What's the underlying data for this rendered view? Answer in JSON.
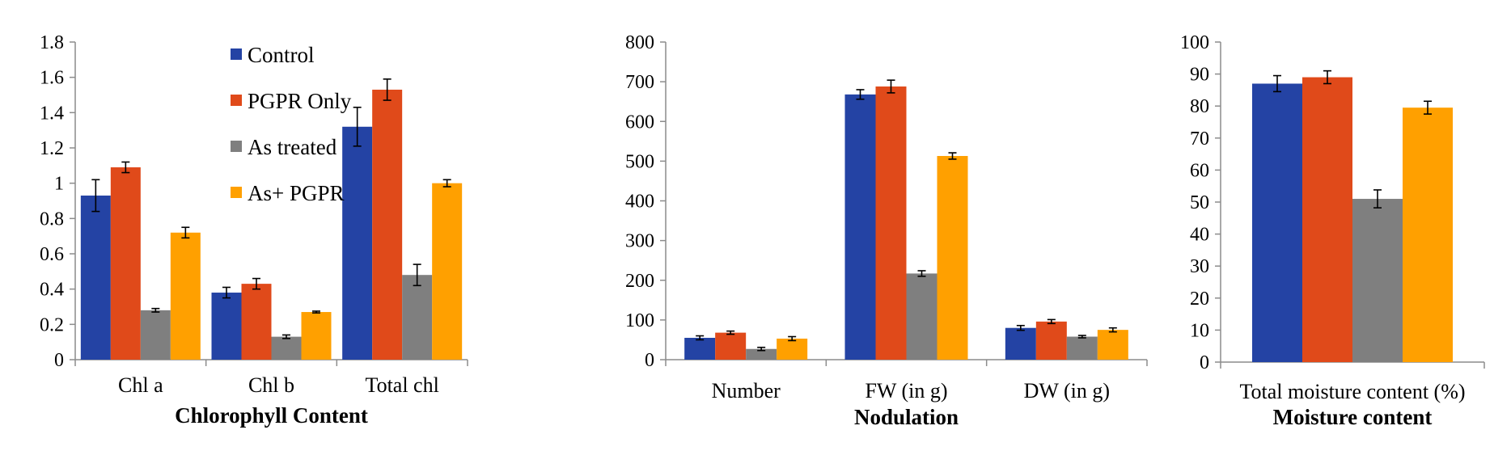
{
  "legend": {
    "entries": [
      {
        "name": "Control",
        "color": "#2443a4"
      },
      {
        "name": "PGPR Only",
        "color": "#e04a1a"
      },
      {
        "name": "As treated",
        "color": "#7f7f7f"
      },
      {
        "name": "As+ PGPR",
        "color": "#ffa000"
      }
    ]
  },
  "chart_data": [
    {
      "type": "bar",
      "title": "Chlorophyll Content",
      "categories": [
        "Chl a",
        "Chl b",
        "Total chl"
      ],
      "ylim": [
        0,
        1.8
      ],
      "yticks": [
        "0",
        "0.2",
        "0.4",
        "0.6",
        "0.8",
        "1",
        "1.2",
        "1.4",
        "1.6",
        "1.8"
      ],
      "tick_step": 0.2,
      "series": [
        {
          "name": "Control",
          "color": "#2443a4",
          "values": [
            0.93,
            0.38,
            1.32
          ],
          "errors": [
            0.09,
            0.03,
            0.11
          ]
        },
        {
          "name": "PGPR Only",
          "color": "#e04a1a",
          "values": [
            1.09,
            0.43,
            1.53
          ],
          "errors": [
            0.03,
            0.03,
            0.06
          ]
        },
        {
          "name": "As treated",
          "color": "#7f7f7f",
          "values": [
            0.28,
            0.13,
            0.48
          ],
          "errors": [
            0.01,
            0.01,
            0.06
          ]
        },
        {
          "name": "As+ PGPR",
          "color": "#ffa000",
          "values": [
            0.72,
            0.27,
            1.0
          ],
          "errors": [
            0.03,
            0.005,
            0.02
          ]
        }
      ]
    },
    {
      "type": "bar",
      "title": "Nodulation",
      "categories": [
        "Number",
        "FW (in g)",
        "DW (in g)"
      ],
      "ylim": [
        0,
        800
      ],
      "yticks": [
        "0",
        "100",
        "200",
        "300",
        "400",
        "500",
        "600",
        "700",
        "800"
      ],
      "tick_step": 100,
      "series": [
        {
          "name": "Control",
          "color": "#2443a4",
          "values": [
            55,
            668,
            80
          ],
          "errors": [
            5,
            12,
            6
          ]
        },
        {
          "name": "PGPR Only",
          "color": "#e04a1a",
          "values": [
            68,
            688,
            96
          ],
          "errors": [
            4,
            16,
            5
          ]
        },
        {
          "name": "As treated",
          "color": "#7f7f7f",
          "values": [
            27,
            217,
            58
          ],
          "errors": [
            4,
            7,
            3
          ]
        },
        {
          "name": "As+ PGPR",
          "color": "#ffa000",
          "values": [
            53,
            513,
            75
          ],
          "errors": [
            5,
            8,
            5
          ]
        }
      ]
    },
    {
      "type": "bar",
      "title": "Moisture content",
      "categories": [
        "Total moisture content (%)"
      ],
      "ylim": [
        0,
        100
      ],
      "yticks": [
        "0",
        "10",
        "20",
        "30",
        "40",
        "50",
        "60",
        "70",
        "80",
        "90",
        "100"
      ],
      "tick_step": 10,
      "series": [
        {
          "name": "Control",
          "color": "#2443a4",
          "values": [
            87
          ],
          "errors": [
            2.5
          ]
        },
        {
          "name": "PGPR Only",
          "color": "#e04a1a",
          "values": [
            89
          ],
          "errors": [
            2
          ]
        },
        {
          "name": "As treated",
          "color": "#7f7f7f",
          "values": [
            51
          ],
          "errors": [
            2.8
          ]
        },
        {
          "name": "As+ PGPR",
          "color": "#ffa000",
          "values": [
            79.5
          ],
          "errors": [
            2
          ]
        }
      ]
    }
  ]
}
